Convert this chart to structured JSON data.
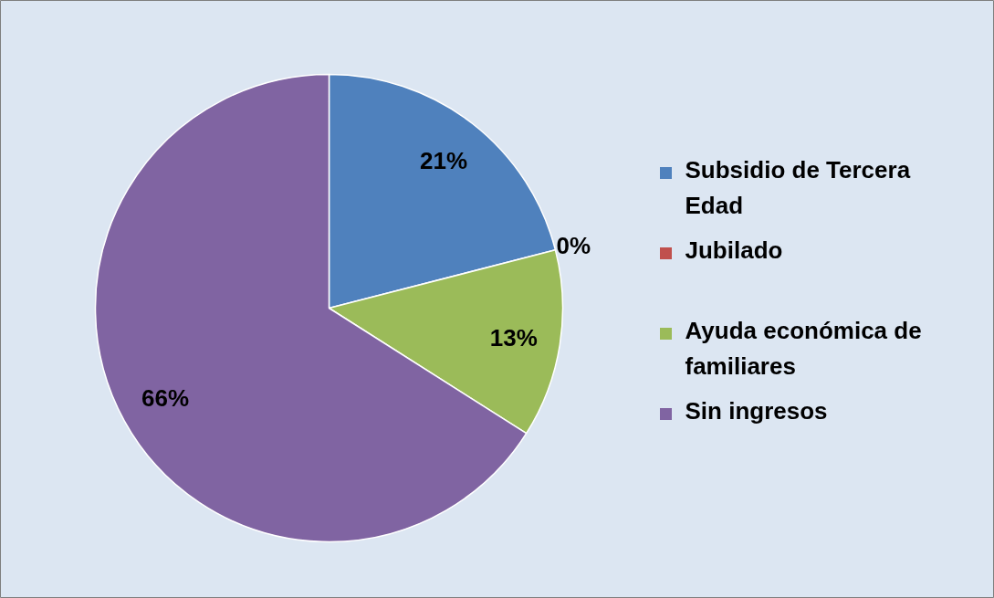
{
  "chart_data": {
    "type": "pie",
    "categories": [
      "Subsidio de Tercera Edad",
      "Jubilado",
      "Ayuda económica de familiares",
      "Sin ingresos"
    ],
    "values": [
      21,
      0,
      13,
      66
    ],
    "colors": [
      "#4f81bd",
      "#c0504d",
      "#9bbb59",
      "#8064a2"
    ],
    "value_labels": [
      "21%",
      "0%",
      "13%",
      "66%"
    ],
    "legend": "right"
  }
}
